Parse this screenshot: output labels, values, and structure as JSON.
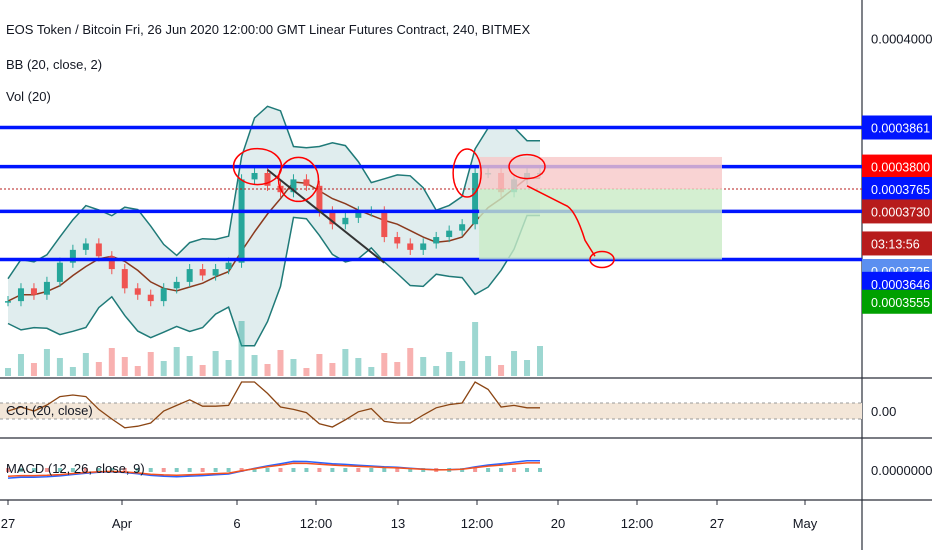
{
  "header": {
    "title": "EOS Token / Bitcoin Fri, 26 Jun 2020 12:00:00 GMT Linear Futures Contract, 240, BITMEX",
    "indicator_bb": "BB (20, close, 2)",
    "indicator_vol": "Vol (20)"
  },
  "panes": {
    "cci_label": "CCI (20, close)",
    "cci_value": "0.00",
    "macd_label": "MACD (12, 26, close, 9)",
    "macd_value": "0.0000000"
  },
  "chart_data": {
    "type": "line",
    "x_ticks": [
      "27",
      "Apr",
      "6",
      "12:00",
      "13",
      "12:00",
      "20",
      "12:00",
      "27",
      "May"
    ],
    "y_ticks": [
      "0.0004000"
    ],
    "ylim": [
      0.000347,
      0.000406
    ],
    "horizontal_levels": [
      0.0003861,
      0.00038,
      0.000373,
      0.0003655
    ],
    "price_tags": [
      {
        "label": "0.0003861",
        "value": 0.0003861,
        "color": "#0015ff"
      },
      {
        "label": "0.0003800",
        "value": 0.00038,
        "color": "#ff0000"
      },
      {
        "label": "0.0003765",
        "value": 0.0003765,
        "color": "#0015ff"
      },
      {
        "label": "0.0003730",
        "value": 0.000373,
        "color": "#b71c1c"
      },
      {
        "label": "03:13:56",
        "value": 0.000368,
        "color": "#b71c1c"
      },
      {
        "label": "0.0003725",
        "value": 0.0003637,
        "color": "#5b8ff0"
      },
      {
        "label": "0.0003646",
        "value": 0.0003617,
        "color": "#0015ff"
      },
      {
        "label": "0.0003555",
        "value": 0.0003589,
        "color": "#00a000"
      }
    ],
    "close_series": [
      0.000359,
      0.000361,
      0.00036,
      0.000362,
      0.000365,
      0.000367,
      0.000368,
      0.000366,
      0.000364,
      0.000361,
      0.00036,
      0.000359,
      0.000361,
      0.000362,
      0.000364,
      0.000363,
      0.000364,
      0.000365,
      0.000378,
      0.000379,
      0.000377,
      0.000376,
      0.000378,
      0.000377,
      0.000373,
      0.000371,
      0.000372,
      0.000373,
      0.000373,
      0.000369,
      0.000368,
      0.000367,
      0.000368,
      0.000369,
      0.00037,
      0.000371,
      0.000379,
      0.000379,
      0.000376,
      0.000378,
      0.000379,
      0.000379
    ],
    "colors": {
      "up": "#26a69a",
      "down": "#ef5350",
      "bb": "#1f7a78",
      "basis": "#8b3a1e",
      "level": "#0015ff",
      "cci": "#8b4513",
      "macd": "#2962ff",
      "signal": "#f4511e",
      "annotation": "#ff0000",
      "trendline": "#333333"
    },
    "grid": false
  }
}
